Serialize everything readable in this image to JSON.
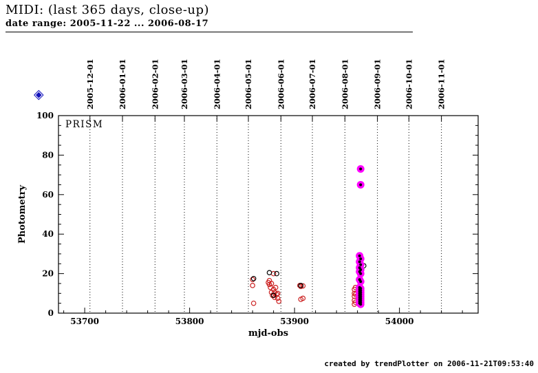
{
  "header": {
    "title": "MIDI: (last 365 days, close-up)",
    "subtitle": "date range: 2005-11-22 ... 2006-08-17"
  },
  "diamond_icon": {
    "glyph": "◈"
  },
  "footer": {
    "credit": "created by trendPlotter on 2006-11-21T09:53:40"
  },
  "chart_data": {
    "type": "scatter",
    "annotation": "PRISM",
    "xlabel": "mjd-obs",
    "ylabel": "Photometry",
    "xlim": [
      53675,
      54075
    ],
    "ylim": [
      0,
      100
    ],
    "x_ticks": [
      53700,
      53800,
      53900,
      54000
    ],
    "y_ticks": [
      0,
      20,
      40,
      60,
      80,
      100
    ],
    "x_minor_step": 20,
    "y_minor_step": 5,
    "grid": "dotted vertical lines at month boundaries",
    "legend_position": "none",
    "date_ticks": [
      {
        "label": "2005-12-01",
        "mjd": 53705
      },
      {
        "label": "2006-01-01",
        "mjd": 53736
      },
      {
        "label": "2006-02-01",
        "mjd": 53767
      },
      {
        "label": "2006-03-01",
        "mjd": 53795
      },
      {
        "label": "2006-04-01",
        "mjd": 53826
      },
      {
        "label": "2006-05-01",
        "mjd": 53856
      },
      {
        "label": "2006-06-01",
        "mjd": 53887
      },
      {
        "label": "2006-07-01",
        "mjd": 53917
      },
      {
        "label": "2006-08-01",
        "mjd": 53948
      },
      {
        "label": "2006-09-01",
        "mjd": 53979
      },
      {
        "label": "2006-10-01",
        "mjd": 54009
      },
      {
        "label": "2006-11-01",
        "mjd": 54040
      }
    ],
    "series": [
      {
        "name": "photometry-red-open",
        "marker": "open-circle",
        "color": "#cc2222",
        "points": [
          [
            53860,
            17
          ],
          [
            53860,
            14
          ],
          [
            53861,
            5
          ],
          [
            53875,
            15.5
          ],
          [
            53876,
            16.5
          ],
          [
            53876,
            14.5
          ],
          [
            53877,
            13
          ],
          [
            53878,
            15
          ],
          [
            53878,
            10.5
          ],
          [
            53879,
            9
          ],
          [
            53880,
            20
          ],
          [
            53880,
            12
          ],
          [
            53881,
            10.5
          ],
          [
            53881,
            8
          ],
          [
            53882,
            13
          ],
          [
            53883,
            9.5
          ],
          [
            53884,
            10
          ],
          [
            53884,
            7.5
          ],
          [
            53885,
            6
          ],
          [
            53905,
            14
          ],
          [
            53906,
            13.5
          ],
          [
            53906,
            7
          ],
          [
            53908,
            13.8
          ],
          [
            53908,
            7.5
          ],
          [
            53957,
            12
          ],
          [
            53957,
            10
          ],
          [
            53957,
            8.5
          ],
          [
            53957,
            6.5
          ],
          [
            53957,
            4.5
          ],
          [
            53958,
            13
          ],
          [
            53958,
            9.5
          ],
          [
            53958,
            5.5
          ]
        ]
      },
      {
        "name": "photometry-black-open",
        "marker": "open-circle",
        "color": "#000000",
        "points": [
          [
            53861,
            17.5
          ],
          [
            53876,
            20.5
          ],
          [
            53883,
            20
          ],
          [
            53880,
            9
          ],
          [
            53906,
            14
          ],
          [
            53961,
            21
          ],
          [
            53966,
            24
          ],
          [
            53962,
            10
          ]
        ]
      },
      {
        "name": "photometry-magenta-filled",
        "marker": "filled-circle-with-dot",
        "color": "#ff00ff",
        "dot_color": "#000000",
        "points": [
          [
            53963,
            73
          ],
          [
            53963,
            65
          ],
          [
            53962,
            29
          ],
          [
            53963,
            27.5
          ],
          [
            53962,
            26
          ],
          [
            53963,
            24.5
          ],
          [
            53962,
            23
          ],
          [
            53963,
            22
          ],
          [
            53962,
            21
          ],
          [
            53963,
            20
          ],
          [
            53962,
            17
          ],
          [
            53963,
            16
          ],
          [
            53962,
            13
          ],
          [
            53963,
            12.5
          ],
          [
            53962,
            12
          ],
          [
            53963,
            11.5
          ],
          [
            53962,
            11
          ],
          [
            53963,
            10.5
          ],
          [
            53962,
            10
          ],
          [
            53963,
            9.5
          ],
          [
            53962,
            9
          ],
          [
            53963,
            8.5
          ],
          [
            53962,
            8
          ],
          [
            53963,
            7.5
          ],
          [
            53962,
            7
          ],
          [
            53963,
            6.5
          ],
          [
            53962,
            6
          ],
          [
            53963,
            5.5
          ],
          [
            53962,
            5
          ],
          [
            53963,
            4.5
          ]
        ]
      }
    ]
  }
}
